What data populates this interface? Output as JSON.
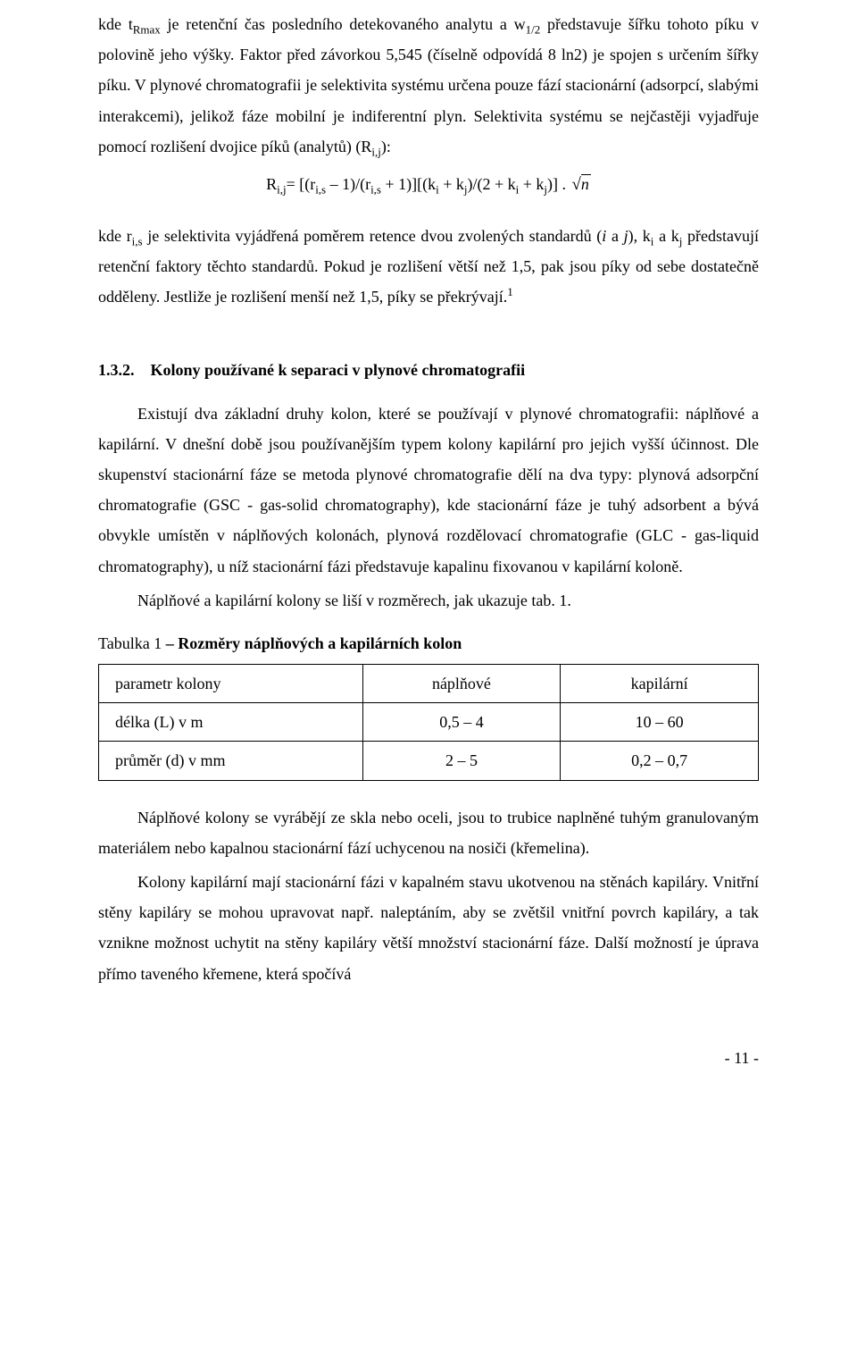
{
  "para1_a": "kde t",
  "para1_sub1": "Rmax",
  "para1_b": " je retenční čas posledního detekovaného analytu a w",
  "para1_sub2": "1/2",
  "para1_c": " představuje šířku tohoto píku v polovině jeho výšky. Faktor před závorkou 5,545 (číselně odpovídá 8 ln2) je spojen s určením šířky píku. V plynové chromatografii je selektivita systému určena pouze fází stacionární (adsorpcí, slabými interakcemi), jelikož fáze mobilní je indiferentní plyn. Selektivita systému se nejčastěji vyjadřuje pomocí rozlišení dvojice píků (analytů) (R",
  "para1_sub3": "i,j",
  "para1_d": "):",
  "formula_a": "R",
  "formula_sub1": "i,j",
  "formula_b": "= [(r",
  "formula_sub2": "i,s",
  "formula_c": " – 1)/(r",
  "formula_sub3": "i,s",
  "formula_d": " + 1)][(k",
  "formula_sub4": "i",
  "formula_e": " + k",
  "formula_sub5": "j",
  "formula_f": ")/(2 + k",
  "formula_sub6": "i",
  "formula_g": " + k",
  "formula_sub7": "j",
  "formula_h": ")] . ",
  "formula_rad": "n",
  "para2_a": "kde r",
  "para2_sub1": "i,s",
  "para2_b": " je selektivita vyjádřená poměrem retence dvou zvolených standardů (",
  "para2_i1": "i",
  "para2_c": " a ",
  "para2_i2": "j",
  "para2_d": "), k",
  "para2_sub2": "i",
  "para2_e": " a k",
  "para2_sub3": "j",
  "para2_f": " představují retenční faktory těchto standardů. Pokud je rozlišení větší než 1,5, pak jsou píky od sebe dostatečně odděleny. Jestliže je rozlišení menší než 1,5, píky se překrývají.",
  "para2_sup1": "1",
  "heading": "1.3.2. Kolony používané k separaci v plynové chromatografii",
  "para3": "Existují dva základní druhy kolon, které se používají v plynové chromatografii: náplňové a kapilární. V dnešní době jsou používanějším typem kolony kapilární pro jejich vyšší účinnost. Dle skupenství stacionární fáze se metoda plynové chromatografie dělí na dva typy: plynová adsorpční chromatografie (GSC - gas-solid chromatography), kde stacionární fáze je tuhý adsorbent a bývá obvykle umístěn v náplňových kolonách, plynová rozdělovací chromatografie (GLC - gas-liquid chromatography), u níž stacionární fázi představuje kapalinu fixovanou v kapilární koloně.",
  "para4": "Náplňové a kapilární kolony se liší v rozměrech, jak ukazuje tab. 1.",
  "table": {
    "caption_a": "Tabulka 1 ",
    "caption_b": "– Rozměry náplňových a kapilárních kolon",
    "columns": [
      "parametr kolony",
      "náplňové",
      "kapilární"
    ],
    "rows": [
      [
        "délka (L) v m",
        "0,5 – 4",
        "10 – 60"
      ],
      [
        "průměr (d) v mm",
        "2 – 5",
        "0,2 – 0,7"
      ]
    ],
    "col_widths": [
      "40%",
      "30%",
      "30%"
    ]
  },
  "para5": "Náplňové kolony se vyrábějí ze skla nebo oceli, jsou to trubice naplněné tuhým granulovaným materiálem nebo kapalnou stacionární fází uchycenou na nosiči (křemelina).",
  "para6": "Kolony kapilární mají stacionární fázi v kapalném stavu ukotvenou na stěnách kapiláry. Vnitřní stěny kapiláry se mohou upravovat např. naleptáním, aby se zvětšil vnitřní povrch kapiláry, a tak vznikne možnost uchytit na stěny kapiláry větší množství stacionární fáze. Další možností je úprava přímo taveného křemene, která spočívá",
  "page_number": "- 11 -"
}
